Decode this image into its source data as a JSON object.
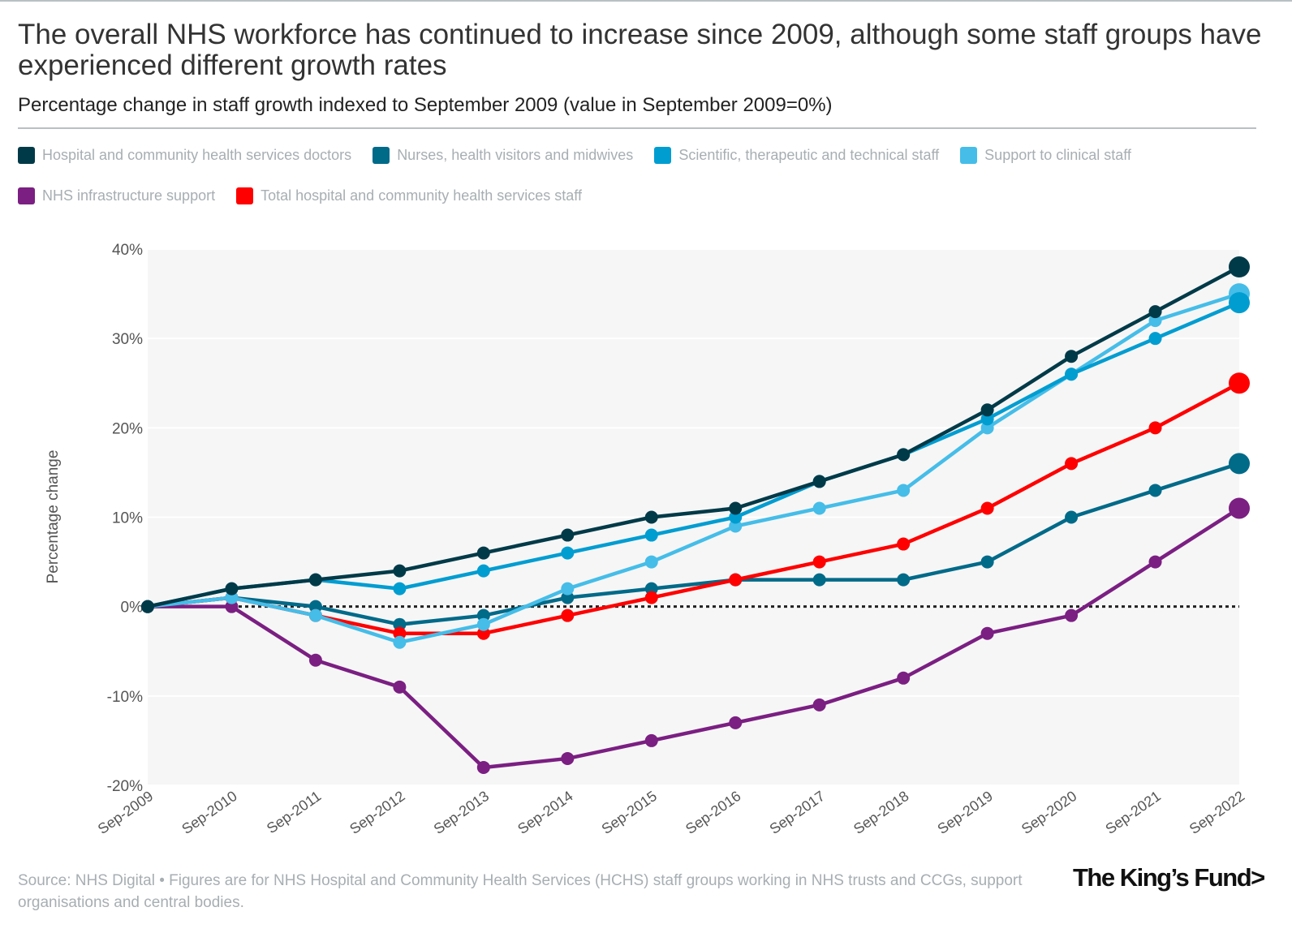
{
  "header": {
    "title": "The overall NHS workforce has continued to increase since 2009, although some staff groups have experienced different growth rates",
    "subtitle": "Percentage change in staff growth indexed to September 2009 (value in September 2009=0%)"
  },
  "chart_data": {
    "type": "line",
    "ylabel": "Percentage change",
    "ylim": [
      -20,
      40
    ],
    "yticks": [
      "-20%",
      "-10%",
      "0%",
      "10%",
      "20%",
      "30%",
      "40%"
    ],
    "ytick_values": [
      -20,
      -10,
      0,
      10,
      20,
      30,
      40
    ],
    "grid": true,
    "legend_position": "top",
    "reference_line": 0,
    "categories": [
      "Sep-2009",
      "Sep-2010",
      "Sep-2011",
      "Sep-2012",
      "Sep-2013",
      "Sep-2014",
      "Sep-2015",
      "Sep-2016",
      "Sep-2017",
      "Sep-2018",
      "Sep-2019",
      "Sep-2020",
      "Sep-2021",
      "Sep-2022"
    ],
    "series": [
      {
        "name": "Hospital and community health services doctors",
        "color": "#003a48",
        "values": [
          0,
          2,
          3,
          4,
          6,
          8,
          10,
          11,
          14,
          17,
          22,
          28,
          33,
          38
        ]
      },
      {
        "name": "Nurses, health visitors and midwives",
        "color": "#006a89",
        "values": [
          0,
          1,
          0,
          -2,
          -1,
          1,
          2,
          3,
          3,
          3,
          5,
          10,
          13,
          16
        ]
      },
      {
        "name": "Scientific, therapeutic and technical staff",
        "color": "#009dd1",
        "values": [
          0,
          2,
          3,
          2,
          4,
          6,
          8,
          10,
          14,
          17,
          21,
          26,
          30,
          34
        ]
      },
      {
        "name": "Support to clinical staff",
        "color": "#45bde8",
        "values": [
          0,
          1,
          -1,
          -4,
          -2,
          2,
          5,
          9,
          11,
          13,
          20,
          26,
          32,
          35
        ]
      },
      {
        "name": "NHS infrastructure support",
        "color": "#7b1f82",
        "values": [
          0,
          0,
          -6,
          -9,
          -18,
          -17,
          -15,
          -13,
          -11,
          -8,
          -3,
          -1,
          5,
          11
        ]
      },
      {
        "name": "Total hospital and community health services staff",
        "color": "#ff0000",
        "values": [
          0,
          1,
          -1,
          -3,
          -3,
          -1,
          1,
          3,
          5,
          7,
          11,
          16,
          20,
          25
        ]
      }
    ]
  },
  "footer": {
    "source": "Source: NHS Digital • Figures are for NHS Hospital and Community Health Services (HCHS) staff groups working in NHS trusts and CCGs, support organisations and central bodies.",
    "logo": "The King's Fund>"
  }
}
